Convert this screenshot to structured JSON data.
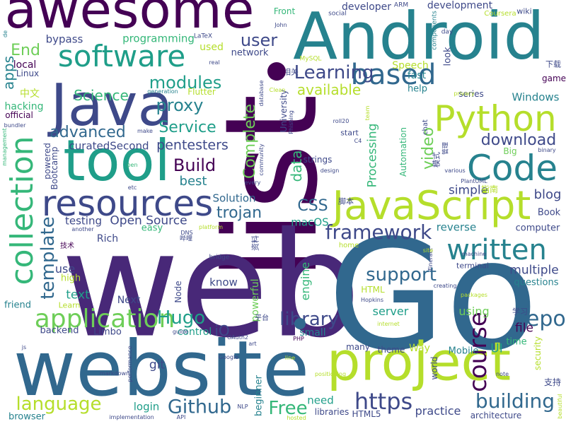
{
  "colors": {
    "background": "#ffffff",
    "palette": [
      "#440154",
      "#482878",
      "#3e4989",
      "#31688e",
      "#26828e",
      "#1f9e89",
      "#35b779",
      "#6ece58",
      "#b5de2b",
      "#fde725"
    ]
  },
  "words": [
    {
      "text": "list",
      "color": "#440154"
    },
    {
      "text": "web",
      "color": "#482878"
    },
    {
      "text": "Go",
      "color": "#31688e"
    },
    {
      "text": "website",
      "color": "#31688e"
    },
    {
      "text": "Android",
      "color": "#26828e"
    },
    {
      "text": "awesome",
      "color": "#440154"
    },
    {
      "text": "Java",
      "color": "#3e4989"
    },
    {
      "text": "tool",
      "color": "#1f9e89"
    },
    {
      "text": "project",
      "color": "#b5de2b"
    },
    {
      "text": "JavaScript",
      "color": "#b5de2b"
    },
    {
      "text": "resources",
      "color": "#3e4989"
    },
    {
      "text": "Python",
      "color": "#b5de2b"
    },
    {
      "text": "Code",
      "color": "#26828e"
    },
    {
      "text": "software",
      "color": "#1f9e89"
    },
    {
      "text": "collection",
      "color": "#35b779"
    },
    {
      "text": "application",
      "color": "#6ece58"
    },
    {
      "text": "written",
      "color": "#26828e"
    },
    {
      "text": "based",
      "color": "#31688e"
    },
    {
      "text": "Learning",
      "color": "#3e4989"
    },
    {
      "text": "framework",
      "color": "#3e4989"
    },
    {
      "text": "https",
      "color": "#3e4989"
    },
    {
      "text": "Github",
      "color": "#31688e"
    },
    {
      "text": "Hugo",
      "color": "#1f9e89"
    },
    {
      "text": "course",
      "color": "#440154"
    },
    {
      "text": "repo",
      "color": "#31688e"
    },
    {
      "text": "building",
      "color": "#31688e"
    },
    {
      "text": "support",
      "color": "#31688e"
    },
    {
      "text": "library",
      "color": "#3e4989"
    },
    {
      "text": "Free",
      "color": "#35b779"
    },
    {
      "text": "language",
      "color": "#b5de2b"
    },
    {
      "text": "template",
      "color": "#31688e"
    },
    {
      "text": "modules",
      "color": "#1f9e89"
    },
    {
      "text": "proxy",
      "color": "#26828e"
    },
    {
      "text": "user",
      "color": "#3e4989"
    },
    {
      "text": "Build",
      "color": "#440154"
    },
    {
      "text": "Service",
      "color": "#1f9e89"
    },
    {
      "text": "advanced",
      "color": "#31688e"
    },
    {
      "text": "download",
      "color": "#3e4989"
    },
    {
      "text": "Complete",
      "color": "#6ece58"
    },
    {
      "text": "Science",
      "color": "#35b779"
    },
    {
      "text": "available",
      "color": "#b5de2b"
    },
    {
      "text": "data",
      "color": "#35b779"
    },
    {
      "text": "video",
      "color": "#6ece58"
    },
    {
      "text": "pentesters",
      "color": "#3e4989"
    },
    {
      "text": "trojan",
      "color": "#31688e"
    },
    {
      "text": "CSS",
      "color": "#31688e"
    },
    {
      "text": "Open Source",
      "color": "#3e4989"
    },
    {
      "text": "Solution",
      "color": "#31688e"
    },
    {
      "text": "curatedSecond",
      "color": "#3e4989"
    },
    {
      "text": "best",
      "color": "#26828e"
    },
    {
      "text": "apps",
      "color": "#26828e"
    },
    {
      "text": "End",
      "color": "#6ece58"
    },
    {
      "text": "multiple",
      "color": "#3e4989"
    },
    {
      "text": "blog",
      "color": "#3e4989"
    },
    {
      "text": "simple",
      "color": "#3e4989"
    },
    {
      "text": "reverse",
      "color": "#26828e"
    },
    {
      "text": "Processing",
      "color": "#35b779"
    },
    {
      "text": "text",
      "color": "#1f9e89"
    },
    {
      "text": "use",
      "color": "#3e4989"
    },
    {
      "text": "testing",
      "color": "#3e4989"
    },
    {
      "text": "macOS",
      "color": "#1f9e89"
    },
    {
      "text": "server",
      "color": "#1f9e89"
    },
    {
      "text": "file",
      "color": "#440154"
    },
    {
      "text": "iO",
      "color": "#3e4989"
    },
    {
      "text": "UI",
      "color": "#1f9e89"
    },
    {
      "text": "git",
      "color": "#3e4989"
    },
    {
      "text": "login",
      "color": "#1f9e89"
    },
    {
      "text": "using",
      "color": "#6ece58"
    },
    {
      "text": "practice",
      "color": "#3e4989"
    },
    {
      "text": "need",
      "color": "#1f9e89"
    },
    {
      "text": "engine",
      "color": "#35b779"
    },
    {
      "text": "know",
      "color": "#3e4989"
    },
    {
      "text": "powerful",
      "color": "#6ece58"
    },
    {
      "text": "control",
      "color": "#1f9e89"
    },
    {
      "text": "small",
      "color": "#26828e"
    },
    {
      "text": "theme",
      "color": "#3e4989"
    },
    {
      "text": "Way",
      "color": "#b5de2b"
    },
    {
      "text": "Mobile",
      "color": "#26828e"
    },
    {
      "text": "Windows",
      "color": "#26828e"
    },
    {
      "text": "programming",
      "color": "#35b779"
    },
    {
      "text": "bypass",
      "color": "#3e4989"
    },
    {
      "text": "development",
      "color": "#3e4989"
    },
    {
      "text": "developer",
      "color": "#3e4989"
    },
    {
      "text": "Speech",
      "color": "#b5de2b"
    },
    {
      "text": "fast",
      "color": "#26828e"
    },
    {
      "text": "help",
      "color": "#26828e"
    },
    {
      "text": "look",
      "color": "#3e4989"
    },
    {
      "text": "network",
      "color": "#3e4989"
    },
    {
      "text": "used",
      "color": "#b5de2b"
    },
    {
      "text": "local",
      "color": "#440154"
    },
    {
      "text": "Linux",
      "color": "#3e4989"
    },
    {
      "text": "hacking",
      "color": "#35b779"
    },
    {
      "text": "official",
      "color": "#440154"
    },
    {
      "text": "Rich",
      "color": "#3e4989"
    },
    {
      "text": "easy",
      "color": "#35b779"
    },
    {
      "text": "computer",
      "color": "#3e4989"
    },
    {
      "text": "questions",
      "color": "#26828e"
    },
    {
      "text": "Book",
      "color": "#3e4989"
    },
    {
      "text": "Next",
      "color": "#3e4989"
    },
    {
      "text": "high",
      "color": "#b5de2b"
    },
    {
      "text": "friend",
      "color": "#26828e"
    },
    {
      "text": "backend",
      "color": "#3e4989"
    },
    {
      "text": "Limbo",
      "color": "#3e4989"
    },
    {
      "text": "browser",
      "color": "#26828e"
    },
    {
      "text": "beginner",
      "color": "#26828e"
    },
    {
      "text": "libraries",
      "color": "#3e4989"
    },
    {
      "text": "HTML5",
      "color": "#3e4989"
    },
    {
      "text": "architecture",
      "color": "#3e4989"
    },
    {
      "text": "time",
      "color": "#35b779"
    },
    {
      "text": "security",
      "color": "#b5de2b"
    },
    {
      "text": "Node",
      "color": "#3e4989"
    },
    {
      "text": "HTML",
      "color": "#b5de2b"
    },
    {
      "text": "world",
      "color": "#3e4989"
    },
    {
      "text": "many",
      "color": "#3e4989"
    },
    {
      "text": "Flutter",
      "color": "#b5de2b"
    },
    {
      "text": "Bootcamp",
      "color": "#3e4989"
    },
    {
      "text": "powered",
      "color": "#3e4989"
    },
    {
      "text": "game",
      "color": "#440154"
    },
    {
      "text": "series",
      "color": "#3e4989"
    },
    {
      "text": "Big",
      "color": "#6ece58"
    },
    {
      "text": "terminal",
      "color": "#3e4989"
    },
    {
      "text": "Front",
      "color": "#35b779"
    },
    {
      "text": "chat",
      "color": "#3e4989"
    },
    {
      "text": "Automation",
      "color": "#35b779"
    },
    {
      "text": "strings",
      "color": "#3e4989"
    },
    {
      "text": "start",
      "color": "#3e4989"
    },
    {
      "text": "University",
      "color": "#3e4989"
    },
    {
      "text": "community",
      "color": "#3e4989"
    },
    {
      "text": "Learn",
      "color": "#b5de2b"
    },
    {
      "text": "wiki",
      "color": "#3e4989"
    },
    {
      "text": "day",
      "color": "#3e4989"
    },
    {
      "text": "social",
      "color": "#3e4989"
    },
    {
      "text": "ARM",
      "color": "#3e4989"
    },
    {
      "text": "Coursera",
      "color": "#b5de2b"
    },
    {
      "text": "components",
      "color": "#26828e"
    },
    {
      "text": "LaTeX",
      "color": "#3e4989"
    },
    {
      "text": "John",
      "color": "#3e4989"
    },
    {
      "text": "MySQL",
      "color": "#b5de2b"
    },
    {
      "text": "real",
      "color": "#3e4989"
    },
    {
      "text": "database",
      "color": "#3e4989"
    },
    {
      "text": "Clean",
      "color": "#b5de2b"
    },
    {
      "text": "Phishing",
      "color": "#3e4989"
    },
    {
      "text": "roll20",
      "color": "#3e4989"
    },
    {
      "text": "C4",
      "color": "#3e4989"
    },
    {
      "text": "team",
      "color": "#b5de2b"
    },
    {
      "text": "generation",
      "color": "#26828e"
    },
    {
      "text": "privacy",
      "color": "#b5de2b"
    },
    {
      "text": "binary",
      "color": "#3e4989"
    },
    {
      "text": "various",
      "color": "#3e4989"
    },
    {
      "text": "PlantUML",
      "color": "#3e4989"
    },
    {
      "text": "Fineract",
      "color": "#3e4989"
    },
    {
      "text": "machine",
      "color": "#3e4989"
    },
    {
      "text": "site",
      "color": "#b5de2b"
    },
    {
      "text": "creating",
      "color": "#3e4989"
    },
    {
      "text": "packages",
      "color": "#b5de2b"
    },
    {
      "text": "Hopkins",
      "color": "#3e4989"
    },
    {
      "text": "internet",
      "color": "#b5de2b"
    },
    {
      "text": "guide",
      "color": "#3e4989"
    },
    {
      "text": "performance",
      "color": "#3e4989"
    },
    {
      "text": "OAuth2",
      "color": "#3e4989"
    },
    {
      "text": "art",
      "color": "#3e4989"
    },
    {
      "text": "markdown",
      "color": "#3e4989"
    },
    {
      "text": "Google",
      "color": "#3e4989"
    },
    {
      "text": "PHP",
      "color": "#440154"
    },
    {
      "text": "line",
      "color": "#b5de2b"
    },
    {
      "text": "positioning",
      "color": "#b5de2b"
    },
    {
      "text": "hosted",
      "color": "#b5de2b"
    },
    {
      "text": "NLP",
      "color": "#3e4989"
    },
    {
      "text": "API",
      "color": "#3e4989"
    },
    {
      "text": "implementation",
      "color": "#3e4989"
    },
    {
      "text": "js",
      "color": "#3e4989"
    },
    {
      "text": "note",
      "color": "#3e4989"
    },
    {
      "text": "beautiful",
      "color": "#b5de2b"
    },
    {
      "text": "design",
      "color": "#3e4989"
    },
    {
      "text": "pen",
      "color": "#35b779"
    },
    {
      "text": "every",
      "color": "#3e4989"
    },
    {
      "text": "etc",
      "color": "#3e4989"
    },
    {
      "text": "make",
      "color": "#3e4989"
    },
    {
      "text": "platform",
      "color": "#b5de2b"
    },
    {
      "text": "DNS",
      "color": "#3e4989"
    },
    {
      "text": "another",
      "color": "#3e4989"
    },
    {
      "text": "bridge",
      "color": "#3e4989"
    },
    {
      "text": "home",
      "color": "#b5de2b"
    },
    {
      "text": "management",
      "color": "#35b779"
    },
    {
      "text": "bundler",
      "color": "#3e4989"
    },
    {
      "text": "de",
      "color": "#26828e"
    },
    {
      "text": "相关",
      "color": "#3e4989"
    },
    {
      "text": "中文",
      "color": "#b5de2b"
    },
    {
      "text": "下载",
      "color": "#3e4989"
    },
    {
      "text": "模式",
      "color": "#3e4989"
    },
    {
      "text": "管理",
      "color": "#3e4989"
    },
    {
      "text": "指南",
      "color": "#b5de2b"
    },
    {
      "text": "脚本",
      "color": "#3e4989"
    },
    {
      "text": "资料",
      "color": "#3e4989"
    },
    {
      "text": "技术",
      "color": "#440154"
    },
    {
      "text": "哔哩",
      "color": "#3e4989"
    },
    {
      "text": "平台",
      "color": "#3e4989"
    },
    {
      "text": "学习",
      "color": "#3e4989"
    },
    {
      "text": "支持",
      "color": "#3e4989"
    }
  ]
}
